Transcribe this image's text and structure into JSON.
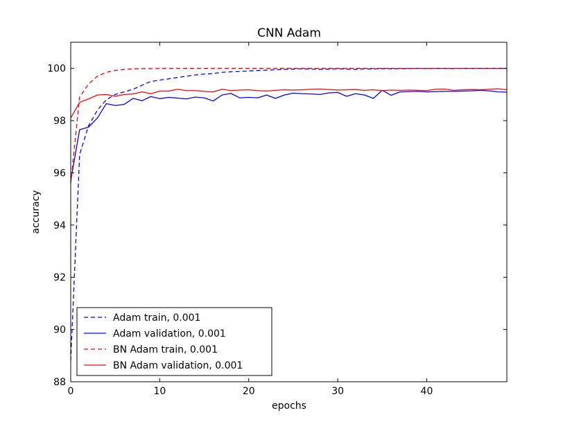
{
  "chart_data": {
    "type": "line",
    "title": "CNN Adam",
    "xlabel": "epochs",
    "ylabel": "accuracy",
    "xlim": [
      0,
      49
    ],
    "ylim": [
      88,
      101
    ],
    "xticks": [
      0,
      10,
      20,
      30,
      40
    ],
    "yticks": [
      88,
      90,
      92,
      94,
      96,
      98,
      100
    ],
    "grid": false,
    "legend_position": "lower-left",
    "x": [
      0,
      1,
      2,
      3,
      4,
      5,
      6,
      7,
      8,
      9,
      10,
      11,
      12,
      13,
      14,
      15,
      16,
      17,
      18,
      19,
      20,
      21,
      22,
      23,
      24,
      25,
      26,
      27,
      28,
      29,
      30,
      31,
      32,
      33,
      34,
      35,
      36,
      37,
      38,
      39,
      40,
      41,
      42,
      43,
      44,
      45,
      46,
      47,
      48,
      49
    ],
    "series": [
      {
        "name": "Adam train, 0.001",
        "color": "#0000ff",
        "dash": true,
        "values": [
          88.8,
          96.7,
          97.8,
          98.4,
          98.8,
          99.0,
          99.1,
          99.2,
          99.35,
          99.5,
          99.55,
          99.6,
          99.65,
          99.7,
          99.75,
          99.78,
          99.8,
          99.85,
          99.87,
          99.88,
          99.9,
          99.92,
          99.93,
          99.95,
          99.96,
          99.97,
          99.98,
          99.97,
          99.96,
          99.97,
          99.98,
          99.97,
          99.96,
          99.98,
          99.97,
          99.99,
          99.98,
          99.99,
          99.99,
          100.0,
          99.99,
          100.0,
          100.0,
          99.99,
          100.0,
          100.0,
          100.0,
          100.0,
          100.0,
          100.0
        ]
      },
      {
        "name": "Adam validation, 0.001",
        "color": "#0000ff",
        "dash": false,
        "values": [
          95.7,
          97.65,
          97.75,
          98.1,
          98.65,
          98.58,
          98.62,
          98.85,
          98.76,
          98.92,
          98.84,
          98.89,
          98.86,
          98.83,
          98.9,
          98.87,
          98.75,
          98.98,
          99.04,
          98.87,
          98.89,
          98.87,
          98.98,
          98.85,
          98.98,
          99.05,
          99.03,
          99.02,
          99.0,
          99.06,
          99.08,
          98.93,
          99.03,
          98.98,
          98.85,
          99.16,
          98.97,
          99.1,
          99.11,
          99.12,
          99.1,
          99.11,
          99.12,
          99.12,
          99.13,
          99.14,
          99.16,
          99.14,
          99.1,
          99.09
        ]
      },
      {
        "name": "BN Adam train, 0.001",
        "color": "#ff0000",
        "dash": true,
        "values": [
          95.6,
          98.9,
          99.4,
          99.7,
          99.85,
          99.92,
          99.96,
          99.98,
          99.99,
          99.99,
          100.0,
          100.0,
          100.0,
          100.0,
          100.0,
          100.0,
          100.0,
          100.0,
          100.0,
          100.0,
          100.0,
          100.0,
          100.0,
          100.0,
          100.0,
          100.0,
          100.0,
          100.0,
          100.0,
          100.0,
          100.0,
          100.0,
          100.0,
          100.0,
          100.0,
          100.0,
          100.0,
          100.0,
          100.0,
          100.0,
          100.0,
          100.0,
          100.0,
          100.0,
          100.0,
          100.0,
          100.0,
          100.0,
          100.0,
          100.0
        ]
      },
      {
        "name": "BN Adam validation, 0.001",
        "color": "#ff0000",
        "dash": false,
        "values": [
          98.1,
          98.7,
          98.83,
          98.98,
          99.0,
          98.93,
          99.0,
          99.02,
          99.1,
          99.03,
          99.13,
          99.13,
          99.2,
          99.15,
          99.15,
          99.12,
          99.1,
          99.2,
          99.15,
          99.17,
          99.18,
          99.15,
          99.13,
          99.16,
          99.18,
          99.17,
          99.18,
          99.2,
          99.21,
          99.19,
          99.17,
          99.18,
          99.19,
          99.16,
          99.18,
          99.15,
          99.17,
          99.16,
          99.17,
          99.16,
          99.15,
          99.2,
          99.21,
          99.16,
          99.18,
          99.19,
          99.18,
          99.2,
          99.22,
          99.18
        ]
      }
    ]
  }
}
